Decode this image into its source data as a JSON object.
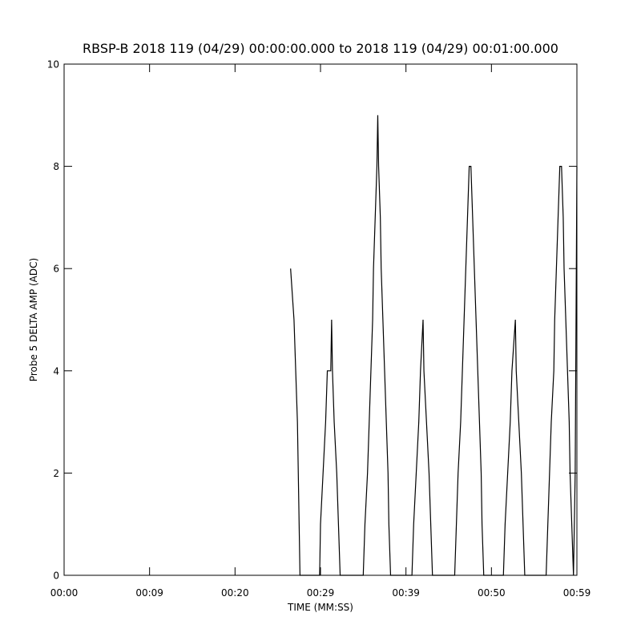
{
  "chart_data": {
    "type": "line",
    "title": "RBSP-B 2018 119 (04/29) 00:00:00.000 to 2018 119 (04/29) 00:01:00.000",
    "xlabel": "TIME (MM:SS)",
    "ylabel": "Probe 5 DELTA AMP (ADC)",
    "color": "#000000",
    "x": [
      26.5,
      26.9,
      27.1,
      27.3,
      27.4,
      27.5,
      27.6,
      29.9,
      30.0,
      30.3,
      30.6,
      30.8,
      31.2,
      31.3,
      31.4,
      31.6,
      31.9,
      32.1,
      32.3,
      35.0,
      35.2,
      35.5,
      35.7,
      35.9,
      36.1,
      36.2,
      36.4,
      36.6,
      36.7,
      36.8,
      37.0,
      37.1,
      37.3,
      37.5,
      37.7,
      37.9,
      38.0,
      38.2,
      40.7,
      40.9,
      41.2,
      41.5,
      41.7,
      42.0,
      42.1,
      42.4,
      42.7,
      42.9,
      43.1,
      45.7,
      45.9,
      46.1,
      46.4,
      46.6,
      46.8,
      47.0,
      47.2,
      47.4,
      47.6,
      47.8,
      48.0,
      48.2,
      48.4,
      48.6,
      48.8,
      48.9,
      49.1,
      51.4,
      51.6,
      51.9,
      52.2,
      52.4,
      52.8,
      52.9,
      53.2,
      53.5,
      53.7,
      53.9,
      56.4,
      56.6,
      56.8,
      57.0,
      57.3,
      57.4,
      57.6,
      57.8,
      58.0,
      58.2,
      58.4,
      58.5,
      58.7,
      58.9,
      59.1,
      59.2,
      59.4,
      59.6,
      59.8,
      59.9,
      60
    ],
    "values": [
      6,
      5,
      4,
      3,
      2,
      1,
      0,
      0,
      1,
      2,
      3,
      4,
      4,
      5,
      4,
      3,
      2,
      1,
      0,
      0,
      1,
      2,
      3,
      4,
      5,
      6,
      7,
      8,
      9,
      8,
      7,
      6,
      5,
      4,
      3,
      2,
      1,
      0,
      0,
      1,
      2,
      3,
      4,
      5,
      4,
      3,
      2,
      1,
      0,
      0,
      1,
      2,
      3,
      4,
      5,
      6,
      7,
      8,
      8,
      7,
      6,
      5,
      4,
      3,
      2,
      1,
      0,
      0,
      1,
      2,
      3,
      4,
      5,
      4,
      3,
      2,
      1,
      0,
      0,
      1,
      2,
      3,
      4,
      5,
      6,
      7,
      8,
      8,
      7,
      6,
      5,
      4,
      3,
      2,
      1,
      0,
      2,
      5,
      8
    ],
    "xlim": [
      0,
      60
    ],
    "xticks": [
      {
        "value": 0,
        "label": "00:00"
      },
      {
        "value": 10,
        "label": "00:09"
      },
      {
        "value": 20,
        "label": "00:20"
      },
      {
        "value": 30,
        "label": "00:29"
      },
      {
        "value": 40,
        "label": "00:39"
      },
      {
        "value": 50,
        "label": "00:50"
      },
      {
        "value": 60,
        "label": "00:59"
      }
    ],
    "ylim": [
      0,
      10
    ],
    "yticks": [
      0,
      2,
      4,
      6,
      8,
      10
    ]
  }
}
